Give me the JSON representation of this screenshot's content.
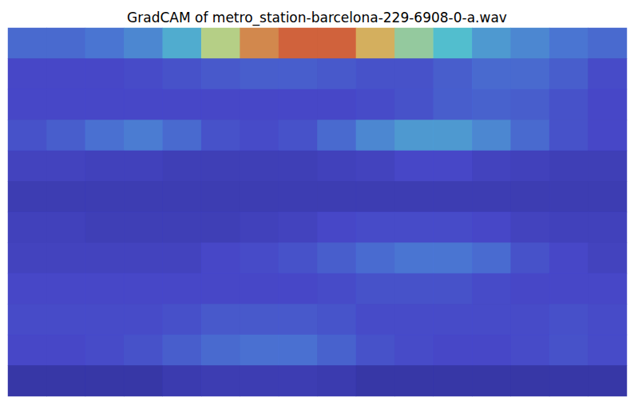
{
  "chart_data": {
    "type": "heatmap",
    "title": "GradCAM of metro_station-barcelona-229-6908-0-a.wav",
    "tick_labels": false,
    "zlim": [
      0,
      1
    ],
    "cells": [
      [
        0.35,
        0.35,
        0.4,
        0.45,
        0.55,
        0.75,
        0.9,
        0.95,
        0.95,
        0.85,
        0.7,
        0.6,
        0.5,
        0.45,
        0.4,
        0.35
      ],
      [
        0.2,
        0.2,
        0.2,
        0.22,
        0.25,
        0.28,
        0.3,
        0.3,
        0.28,
        0.25,
        0.25,
        0.3,
        0.35,
        0.35,
        0.3,
        0.22
      ],
      [
        0.2,
        0.2,
        0.2,
        0.2,
        0.2,
        0.2,
        0.2,
        0.2,
        0.2,
        0.22,
        0.25,
        0.3,
        0.32,
        0.3,
        0.25,
        0.2
      ],
      [
        0.25,
        0.3,
        0.38,
        0.42,
        0.35,
        0.25,
        0.22,
        0.25,
        0.35,
        0.45,
        0.5,
        0.5,
        0.45,
        0.35,
        0.25,
        0.2
      ],
      [
        0.18,
        0.18,
        0.17,
        0.17,
        0.16,
        0.16,
        0.16,
        0.16,
        0.17,
        0.18,
        0.2,
        0.2,
        0.18,
        0.17,
        0.16,
        0.16
      ],
      [
        0.15,
        0.15,
        0.15,
        0.15,
        0.15,
        0.15,
        0.15,
        0.15,
        0.15,
        0.15,
        0.15,
        0.15,
        0.15,
        0.15,
        0.15,
        0.15
      ],
      [
        0.17,
        0.17,
        0.16,
        0.16,
        0.16,
        0.16,
        0.17,
        0.18,
        0.2,
        0.22,
        0.22,
        0.22,
        0.2,
        0.18,
        0.17,
        0.17
      ],
      [
        0.18,
        0.18,
        0.18,
        0.18,
        0.18,
        0.2,
        0.22,
        0.25,
        0.3,
        0.36,
        0.4,
        0.4,
        0.36,
        0.25,
        0.2,
        0.18
      ],
      [
        0.2,
        0.2,
        0.2,
        0.2,
        0.2,
        0.2,
        0.2,
        0.2,
        0.22,
        0.25,
        0.25,
        0.25,
        0.22,
        0.2,
        0.2,
        0.2
      ],
      [
        0.22,
        0.22,
        0.22,
        0.22,
        0.24,
        0.28,
        0.28,
        0.28,
        0.26,
        0.22,
        0.22,
        0.22,
        0.22,
        0.22,
        0.24,
        0.22
      ],
      [
        0.2,
        0.2,
        0.22,
        0.25,
        0.3,
        0.35,
        0.38,
        0.38,
        0.32,
        0.25,
        0.22,
        0.2,
        0.2,
        0.22,
        0.25,
        0.22
      ],
      [
        0.12,
        0.12,
        0.12,
        0.12,
        0.14,
        0.15,
        0.15,
        0.15,
        0.14,
        0.12,
        0.12,
        0.12,
        0.12,
        0.12,
        0.12,
        0.12
      ]
    ]
  }
}
